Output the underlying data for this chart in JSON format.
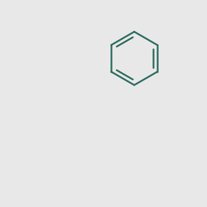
{
  "background_color": "#e8e8e8",
  "bond_color": "#2d6b5e",
  "n_color": "#1a1aff",
  "o_color": "#ff2020",
  "text_color": "#1a1aff",
  "line_width": 1.8,
  "figsize": [
    3.0,
    3.0
  ],
  "dpi": 100
}
